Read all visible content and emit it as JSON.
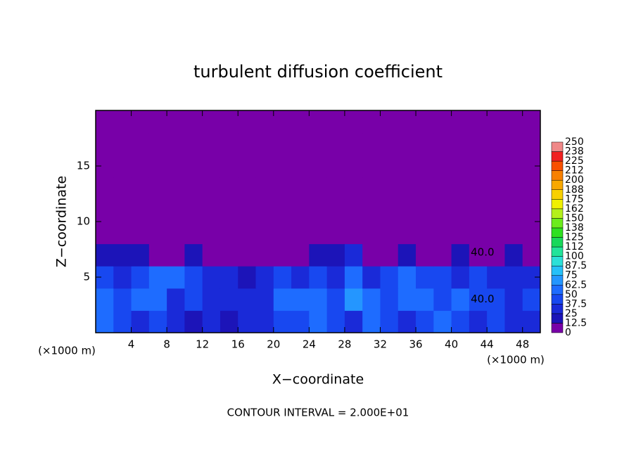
{
  "chart_data": {
    "type": "heatmap",
    "title": "turbulent diffusion coefficient",
    "xlabel": "X−coordinate",
    "ylabel": "Z−coordinate",
    "xunit": "(×1000 m)",
    "yunit": "(×1000 m)",
    "footnote": "CONTOUR INTERVAL = 2.000E+01",
    "xlim": [
      0,
      50
    ],
    "ylim": [
      0,
      20
    ],
    "xticks": [
      4,
      8,
      12,
      16,
      20,
      24,
      28,
      32,
      36,
      40,
      44,
      48
    ],
    "yticks": [
      5,
      10,
      15
    ],
    "levels": [
      0,
      12.5,
      25,
      37.5,
      50,
      62.5,
      75,
      87.5,
      100,
      112,
      125,
      138,
      150,
      162,
      175,
      188,
      200,
      212,
      225,
      238,
      250
    ],
    "colors": [
      "#7800a8",
      "#1c14b8",
      "#1a2ad8",
      "#1848f0",
      "#1e6cff",
      "#2496ff",
      "#26c0f8",
      "#2ce0d8",
      "#22e49a",
      "#18d85a",
      "#2ee020",
      "#6cec1c",
      "#b4f01c",
      "#f0f000",
      "#f8d000",
      "#f8a800",
      "#f88000",
      "#f85000",
      "#f02020",
      "#f08888"
    ],
    "field": [
      [
        50,
        40,
        30,
        40,
        30,
        20,
        25,
        20,
        25,
        35,
        40,
        45,
        50,
        40,
        35,
        60,
        40,
        30,
        45,
        50,
        40,
        35,
        40,
        30,
        35
      ],
      [
        60,
        45,
        55,
        50,
        35,
        40,
        30,
        30,
        25,
        35,
        60,
        55,
        50,
        45,
        70,
        55,
        45,
        60,
        50,
        40,
        60,
        40,
        45,
        35,
        40
      ],
      [
        40,
        35,
        45,
        55,
        50,
        40,
        35,
        25,
        20,
        30,
        40,
        30,
        45,
        35,
        55,
        30,
        40,
        50,
        45,
        40,
        35,
        45,
        35,
        30,
        30
      ],
      [
        20,
        15,
        20,
        10,
        10,
        15,
        5,
        5,
        5,
        5,
        5,
        10,
        20,
        15,
        30,
        5,
        10,
        15,
        10,
        5,
        15,
        10,
        10,
        15,
        10
      ],
      [
        0,
        0,
        0,
        0,
        0,
        0,
        0,
        0,
        0,
        0,
        0,
        0,
        0,
        0,
        10,
        0,
        0,
        0,
        0,
        0,
        0,
        0,
        0,
        0,
        0
      ],
      [
        0,
        0,
        0,
        0,
        0,
        0,
        0,
        0,
        0,
        0,
        0,
        0,
        0,
        0,
        0,
        0,
        0,
        0,
        0,
        0,
        0,
        0,
        0,
        0,
        0
      ],
      [
        0,
        0,
        0,
        0,
        0,
        0,
        0,
        0,
        0,
        0,
        0,
        0,
        0,
        0,
        0,
        0,
        0,
        0,
        0,
        0,
        0,
        0,
        0,
        0,
        0
      ],
      [
        0,
        0,
        0,
        0,
        0,
        0,
        0,
        0,
        0,
        0,
        0,
        0,
        0,
        0,
        0,
        0,
        0,
        0,
        0,
        0,
        0,
        0,
        0,
        0,
        0
      ],
      [
        0,
        0,
        0,
        0,
        0,
        0,
        0,
        0,
        0,
        0,
        0,
        0,
        0,
        0,
        0,
        0,
        0,
        0,
        0,
        0,
        0,
        0,
        0,
        0,
        0
      ],
      [
        0,
        0,
        0,
        0,
        0,
        0,
        0,
        0,
        0,
        0,
        0,
        0,
        0,
        0,
        0,
        0,
        0,
        0,
        0,
        0,
        0,
        0,
        0,
        0,
        0
      ]
    ],
    "annotations": [
      {
        "text": "40.0",
        "x": 43.5,
        "y": 7.2
      },
      {
        "text": "40.0",
        "x": 43.5,
        "y": 3
      }
    ]
  }
}
